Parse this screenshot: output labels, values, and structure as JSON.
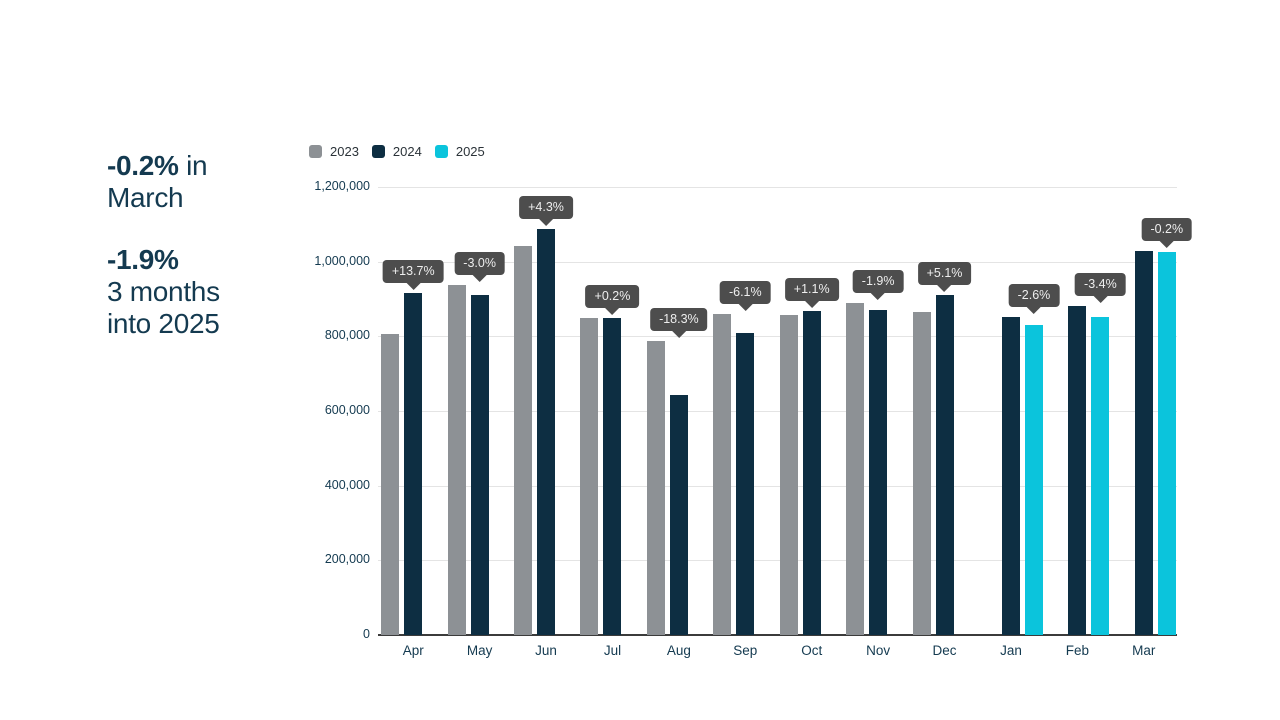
{
  "annotations": {
    "headline1": {
      "bold": "-0.2%",
      "rest": " in March"
    },
    "headline2": {
      "bold": "-1.9%",
      "rest": "3 months into 2025"
    },
    "text_color": "#143a50"
  },
  "chart_data": {
    "type": "bar",
    "title": "",
    "categories": [
      "Apr",
      "May",
      "Jun",
      "Jul",
      "Aug",
      "Sep",
      "Oct",
      "Nov",
      "Dec",
      "Jan",
      "Feb",
      "Mar"
    ],
    "series": [
      {
        "name": "2023",
        "color": "#8d9195",
        "values": [
          805000,
          938000,
          1042000,
          848000,
          787000,
          861000,
          858000,
          888000,
          866000,
          null,
          null,
          null
        ]
      },
      {
        "name": "2024",
        "color": "#0d2e42",
        "values": [
          915000,
          910000,
          1087000,
          850000,
          643000,
          808000,
          867000,
          871000,
          910000,
          852000,
          882000,
          1029000
        ]
      },
      {
        "name": "2025",
        "color": "#0bc4dc",
        "values": [
          null,
          null,
          null,
          null,
          null,
          null,
          null,
          null,
          null,
          830000,
          852000,
          1027000
        ]
      }
    ],
    "point_labels": [
      "+13.7%",
      "-3.0%",
      "+4.3%",
      "+0.2%",
      "-18.3%",
      "-6.1%",
      "+1.1%",
      "-1.9%",
      "+5.1%",
      "-2.6%",
      "-3.4%",
      "-0.2%"
    ],
    "y_ticks": [
      {
        "value": 0,
        "label": "0"
      },
      {
        "value": 200000,
        "label": "200,000"
      },
      {
        "value": 400000,
        "label": "400,000"
      },
      {
        "value": 600000,
        "label": "600,000"
      },
      {
        "value": 800000,
        "label": "800,000"
      },
      {
        "value": 1000000,
        "label": "1,000,000"
      },
      {
        "value": 1200000,
        "label": "1,200,000"
      }
    ],
    "ylim": [
      0,
      1200000
    ],
    "xlabel": "",
    "ylabel": "",
    "grid": true,
    "legend_position": "top-left",
    "axis_text_color": "#143a50",
    "gridline_color": "#e4e4e4",
    "baseline_color": "#3b3b3b",
    "callout_style": {
      "bg": "#4d4d4d",
      "text": "#eeeeee"
    }
  }
}
